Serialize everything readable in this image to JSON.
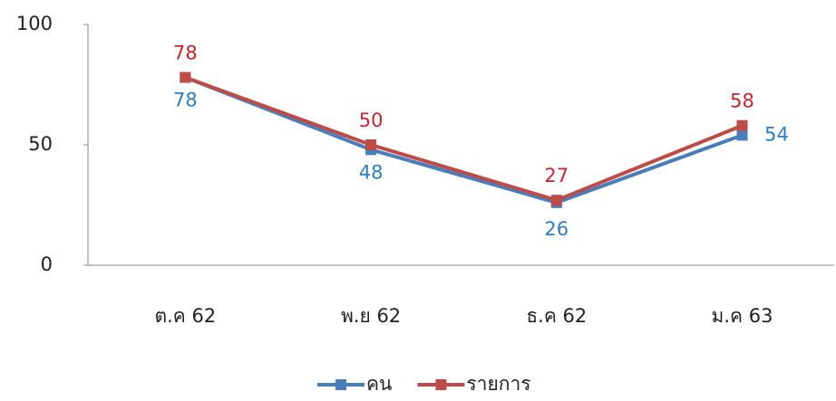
{
  "chart_data": {
    "type": "line",
    "categories": [
      "ต.ค 62",
      "พ.ย 62",
      "ธ.ค 62",
      "ม.ค 63"
    ],
    "series": [
      {
        "name": "คน",
        "color": "#4a7ebb",
        "label_color": "#2f7bbf",
        "values": [
          78,
          48,
          26,
          54
        ]
      },
      {
        "name": "รายการ",
        "color": "#be4b48",
        "label_color": "#c0262d",
        "values": [
          78,
          50,
          27,
          58
        ]
      }
    ],
    "ylim": [
      0,
      100
    ],
    "yticks": [
      0,
      50,
      100
    ],
    "grid": false,
    "legend": "bottom"
  }
}
